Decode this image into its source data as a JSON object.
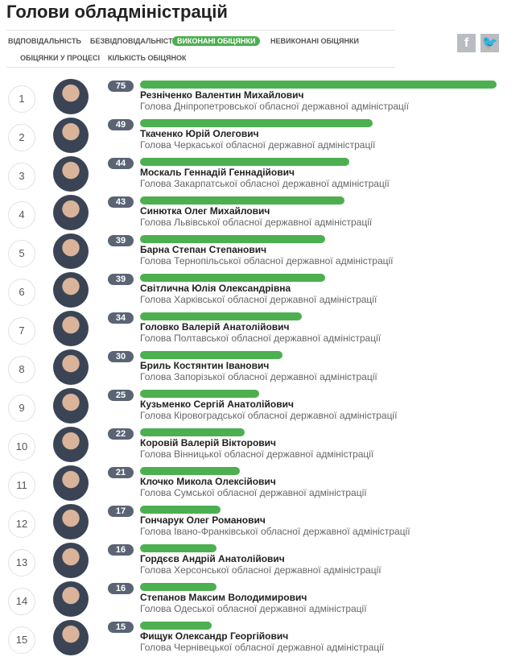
{
  "title": "Голови обладміністрацій",
  "tabs": [
    {
      "label": "Відповідальність",
      "active": false
    },
    {
      "label": "Безвідповідальність",
      "active": false
    },
    {
      "label": "Виконані обіцянки",
      "active": true
    },
    {
      "label": "Невиконані обіцянки",
      "active": false
    },
    {
      "label": "Обіцянки у процесі",
      "active": false
    },
    {
      "label": "Кількість обіцянок",
      "active": false
    }
  ],
  "social": {
    "facebook": "f",
    "twitter": "t"
  },
  "colors": {
    "bar": "#4caf50",
    "badge": "#5a6474"
  },
  "max_value": 75,
  "rows": [
    {
      "rank": "1",
      "value": 75,
      "name": "Резніченко Валентин Михайлович",
      "title": "Голова Дніпропетровської обласної державної адміністрації"
    },
    {
      "rank": "2",
      "value": 49,
      "name": "Ткаченко Юрій Олегович",
      "title": "Голова Черкаської обласної державної адміністрації"
    },
    {
      "rank": "3",
      "value": 44,
      "name": "Москаль Геннадій Геннадійович",
      "title": "Голова Закарпатської обласної державної адміністрації"
    },
    {
      "rank": "4",
      "value": 43,
      "name": "Синютка Олег Михайлович",
      "title": "Голова Львівської обласної державної адміністрації"
    },
    {
      "rank": "5",
      "value": 39,
      "name": "Барна Степан Степанович",
      "title": "Голова Тернопільської обласної державної адміністрації"
    },
    {
      "rank": "6",
      "value": 39,
      "name": "Світлична Юлія Олександрівна",
      "title": "Голова Харківської обласної державної адміністрації"
    },
    {
      "rank": "7",
      "value": 34,
      "name": "Головко Валерій Анатолійович",
      "title": "Голова Полтавської обласної державної адміністрації"
    },
    {
      "rank": "8",
      "value": 30,
      "name": "Бриль Костянтин Іванович",
      "title": "Голова Запорізької обласної державної адміністрації"
    },
    {
      "rank": "9",
      "value": 25,
      "name": "Кузьменко Сергій Анатолійович",
      "title": "Голова Кіровоградської обласної державної адміністрації"
    },
    {
      "rank": "10",
      "value": 22,
      "name": "Коровій Валерій Вікторович",
      "title": "Голова Вінницької обласної державної адміністрації"
    },
    {
      "rank": "11",
      "value": 21,
      "name": "Клочко Микола Олексійович",
      "title": "Голова Сумської обласної державної адміністрації"
    },
    {
      "rank": "12",
      "value": 17,
      "name": "Гончарук Олег Романович",
      "title": "Голова Івано-Франківської обласної державної адміністрації"
    },
    {
      "rank": "13",
      "value": 16,
      "name": "Гордєєв Андрій Анатолійович",
      "title": "Голова Херсонської обласної державної адміністрації"
    },
    {
      "rank": "14",
      "value": 16,
      "name": "Степанов Максим Володимирович",
      "title": "Голова Одеської обласної державної адміністрації"
    },
    {
      "rank": "15",
      "value": 15,
      "name": "Фищук Олександр Георгійович",
      "title": "Голова Чернівецької обласної державної адміністрації"
    }
  ]
}
